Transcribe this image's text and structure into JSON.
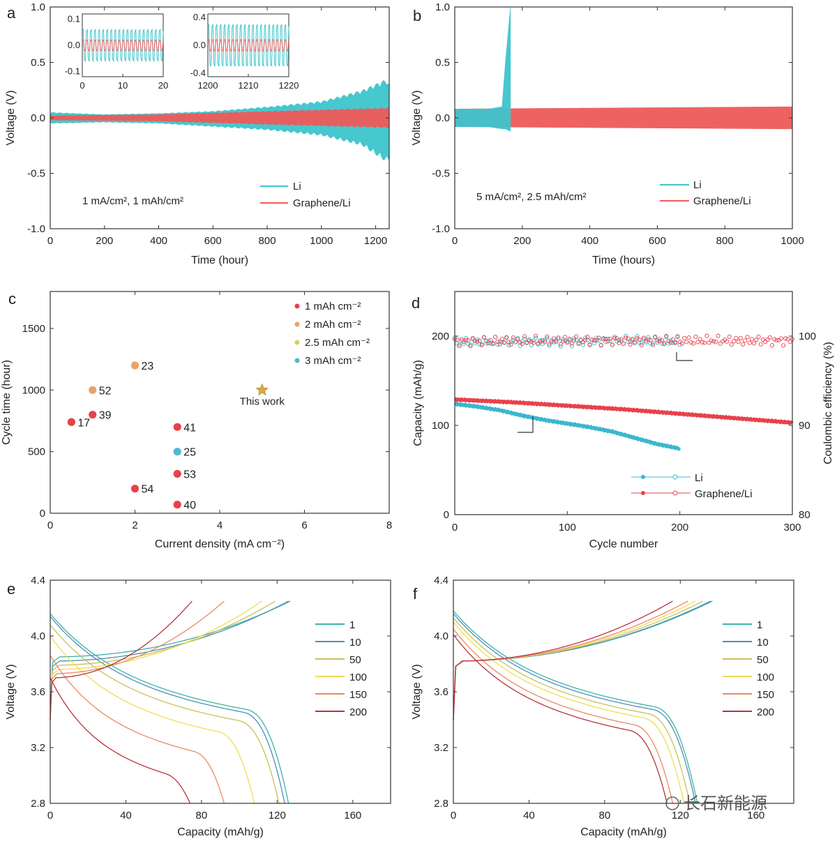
{
  "watermark": "长石新能源",
  "chart_data": [
    {
      "panel": "a",
      "type": "line",
      "xlabel": "Time (hour)",
      "ylabel": "Voltage (V)",
      "xlim": [
        0,
        1250
      ],
      "ylim": [
        -1.0,
        1.0
      ],
      "xticks": [
        0,
        200,
        400,
        600,
        800,
        1000,
        1200
      ],
      "yticks": [
        1.0,
        0.5,
        0.0,
        -0.5,
        -1.0
      ],
      "yticklabels": [
        "1.0",
        "0.5",
        "0.0",
        "-0.5",
        "-1.0"
      ],
      "annotation": "1 mA/cm², 1 mAh/cm²",
      "series": [
        {
          "name": "Li",
          "color": "#3ec5cc",
          "envelope": {
            "t": [
              0,
              200,
              400,
              600,
              800,
              1000,
              1150,
              1240,
              1250
            ],
            "upper": [
              0.05,
              0.03,
              0.04,
              0.06,
              0.1,
              0.15,
              0.25,
              0.35,
              0.3
            ],
            "lower": [
              -0.05,
              -0.04,
              -0.05,
              -0.08,
              -0.11,
              -0.16,
              -0.25,
              -0.4,
              -0.38
            ]
          }
        },
        {
          "name": "Graphene/Li",
          "color": "#ef5a5a",
          "envelope": {
            "t": [
              0,
              400,
              800,
              1250
            ],
            "upper": [
              0.02,
              0.03,
              0.06,
              0.09
            ],
            "lower": [
              -0.02,
              -0.03,
              -0.06,
              -0.09
            ]
          }
        }
      ],
      "insets": [
        {
          "xlim": [
            0,
            20
          ],
          "ylim": [
            -0.12,
            0.12
          ],
          "xticks": [
            0,
            10,
            20
          ],
          "yticks": [
            0.1,
            0.0,
            -0.1
          ],
          "yticklabels": [
            "0.1",
            "0.0",
            "-0.1"
          ]
        },
        {
          "xlim": [
            1200,
            1220
          ],
          "ylim": [
            -0.45,
            0.45
          ],
          "xticks": [
            1200,
            1210,
            1220
          ],
          "yticks": [
            0.4,
            0.0,
            -0.4
          ],
          "yticklabels": [
            "0.4",
            "0.0",
            "-0.4"
          ]
        }
      ]
    },
    {
      "panel": "b",
      "type": "line",
      "xlabel": "Time (hours)",
      "ylabel": "Voltage (V)",
      "xlim": [
        0,
        1000
      ],
      "ylim": [
        -1.0,
        1.0
      ],
      "xticks": [
        0,
        200,
        400,
        600,
        800,
        1000
      ],
      "yticks": [
        1.0,
        0.5,
        0.0,
        -0.5,
        -1.0
      ],
      "yticklabels": [
        "1.0",
        "0.5",
        "0.0",
        "-0.5",
        "-1.0"
      ],
      "annotation": "5 mA/cm², 2.5 mAh/cm²",
      "series": [
        {
          "name": "Li",
          "color": "#3ec5cc",
          "envelope": {
            "t": [
              0,
              100,
              140,
              150,
              165
            ],
            "upper": [
              0.08,
              0.08,
              0.1,
              0.5,
              1.0
            ],
            "lower": [
              -0.08,
              -0.08,
              -0.1,
              -0.1,
              -0.12
            ]
          }
        },
        {
          "name": "Graphene/Li",
          "color": "#ef5a5a",
          "envelope": {
            "t": [
              0,
              500,
              1000
            ],
            "upper": [
              0.08,
              0.09,
              0.1
            ],
            "lower": [
              -0.08,
              -0.09,
              -0.1
            ]
          }
        }
      ]
    },
    {
      "panel": "c",
      "type": "scatter",
      "xlabel": "Current density (mA cm⁻²)",
      "ylabel": "Cycle time (hour)",
      "xlim": [
        0,
        8
      ],
      "ylim": [
        0,
        1800
      ],
      "xticks": [
        0,
        2,
        4,
        6,
        8
      ],
      "yticks": [
        0,
        500,
        1000,
        1500
      ],
      "legend": [
        {
          "label": "1 mAh cm⁻²",
          "color": "#e8414b"
        },
        {
          "label": "2 mAh cm⁻²",
          "color": "#e8a26a"
        },
        {
          "label": "2.5 mAh cm⁻²",
          "color": "#d8cf62"
        },
        {
          "label": "3 mAh cm⁻²",
          "color": "#4fb9cf"
        }
      ],
      "points": [
        {
          "x": 0.5,
          "y": 740,
          "ref": "17",
          "group": 0
        },
        {
          "x": 1.0,
          "y": 800,
          "ref": "39",
          "group": 0
        },
        {
          "x": 1.0,
          "y": 1000,
          "ref": "52",
          "group": 1
        },
        {
          "x": 2.0,
          "y": 1200,
          "ref": "23",
          "group": 1
        },
        {
          "x": 2.0,
          "y": 200,
          "ref": "54",
          "group": 0
        },
        {
          "x": 3.0,
          "y": 700,
          "ref": "41",
          "group": 0
        },
        {
          "x": 3.0,
          "y": 500,
          "ref": "25",
          "group": 3
        },
        {
          "x": 3.0,
          "y": 320,
          "ref": "53",
          "group": 0
        },
        {
          "x": 3.0,
          "y": 70,
          "ref": "40",
          "group": 0
        }
      ],
      "highlight": {
        "x": 5.0,
        "y": 1000,
        "label": "This work",
        "color": "#d6a94a"
      }
    },
    {
      "panel": "d",
      "type": "line",
      "xlabel": "Cycle number",
      "ylabel": "Capacity (mAh/g)",
      "y2label": "Coulombic efficiency (%)",
      "xlim": [
        0,
        300
      ],
      "ylim": [
        0,
        250
      ],
      "y2lim": [
        80,
        105
      ],
      "xticks": [
        0,
        100,
        200,
        300
      ],
      "yticks": [
        0,
        100,
        200
      ],
      "y2ticks": [
        80,
        90,
        100
      ],
      "series": [
        {
          "name": "Li",
          "color": "#3ab7cf",
          "axis": "left",
          "x": [
            0,
            20,
            40,
            60,
            80,
            100,
            120,
            140,
            160,
            180,
            200
          ],
          "y": [
            124,
            121,
            117,
            111,
            106,
            102,
            98,
            93,
            86,
            79,
            74
          ]
        },
        {
          "name": "Graphene/Li",
          "color": "#e8414b",
          "axis": "left",
          "x": [
            0,
            50,
            100,
            150,
            200,
            250,
            300
          ],
          "y": [
            129,
            126,
            122,
            118,
            113,
            108,
            103
          ]
        },
        {
          "name": "Li CE",
          "color": "#3ab7cf",
          "axis": "right",
          "x": [
            0,
            50,
            100,
            150,
            200
          ],
          "y": [
            99.3,
            99.4,
            99.4,
            99.5,
            99.4
          ]
        },
        {
          "name": "Graphene/Li CE",
          "color": "#e8414b",
          "axis": "right",
          "x": [
            0,
            100,
            200,
            300
          ],
          "y": [
            99.4,
            99.5,
            99.5,
            99.5
          ]
        }
      ],
      "legend": [
        "Li",
        "Graphene/Li"
      ]
    },
    {
      "panel": "e",
      "type": "line",
      "xlabel": "Capacity (mAh/g)",
      "ylabel": "Voltage (V)",
      "xlim": [
        0,
        180
      ],
      "ylim": [
        2.8,
        4.4
      ],
      "xticks": [
        0,
        40,
        80,
        120,
        160
      ],
      "yticks": [
        2.8,
        3.2,
        3.6,
        4.0,
        4.4
      ],
      "yticklabels": [
        "2.8",
        "3.2",
        "3.6",
        "4.0",
        "4.4"
      ],
      "legend_title_cycles": [
        "1",
        "10",
        "50",
        "100",
        "150",
        "200"
      ],
      "series": [
        {
          "name": "1",
          "color": "#3db2a8",
          "discharge_end": 126,
          "charge_end": 127,
          "plateau": 3.58
        },
        {
          "name": "10",
          "color": "#4d8fb5",
          "discharge_end": 124,
          "charge_end": 126,
          "plateau": 3.56
        },
        {
          "name": "50",
          "color": "#c9c05a",
          "discharge_end": 121,
          "charge_end": 119,
          "plateau": 3.5
        },
        {
          "name": "100",
          "color": "#f0dc55",
          "discharge_end": 108,
          "charge_end": 112,
          "plateau": 3.42
        },
        {
          "name": "150",
          "color": "#e88a62",
          "discharge_end": 92,
          "charge_end": 92,
          "plateau": 3.28
        },
        {
          "name": "200",
          "color": "#b8323f",
          "discharge_end": 74,
          "charge_end": 75,
          "plateau": 3.12
        }
      ]
    },
    {
      "panel": "f",
      "type": "line",
      "xlabel": "Capacity (mAh/g)",
      "ylabel": "Voltage (V)",
      "xlim": [
        0,
        180
      ],
      "ylim": [
        2.8,
        4.4
      ],
      "xticks": [
        0,
        40,
        80,
        120,
        160
      ],
      "yticks": [
        2.8,
        3.2,
        3.6,
        4.0,
        4.4
      ],
      "yticklabels": [
        "2.8",
        "3.2",
        "3.6",
        "4.0",
        "4.4"
      ],
      "legend_title_cycles": [
        "1",
        "10",
        "50",
        "100",
        "150",
        "200"
      ],
      "series": [
        {
          "name": "1",
          "color": "#3db2a8",
          "discharge_end": 129,
          "charge_end": 137,
          "plateau": 3.6
        },
        {
          "name": "10",
          "color": "#4d8fb5",
          "discharge_end": 128,
          "charge_end": 136,
          "plateau": 3.58
        },
        {
          "name": "50",
          "color": "#c9c05a",
          "discharge_end": 125,
          "charge_end": 132,
          "plateau": 3.55
        },
        {
          "name": "100",
          "color": "#f0dc55",
          "discharge_end": 122,
          "charge_end": 128,
          "plateau": 3.52
        },
        {
          "name": "150",
          "color": "#e88a62",
          "discharge_end": 116,
          "charge_end": 124,
          "plateau": 3.47
        },
        {
          "name": "200",
          "color": "#b8323f",
          "discharge_end": 113,
          "charge_end": 116,
          "plateau": 3.43
        }
      ]
    }
  ]
}
